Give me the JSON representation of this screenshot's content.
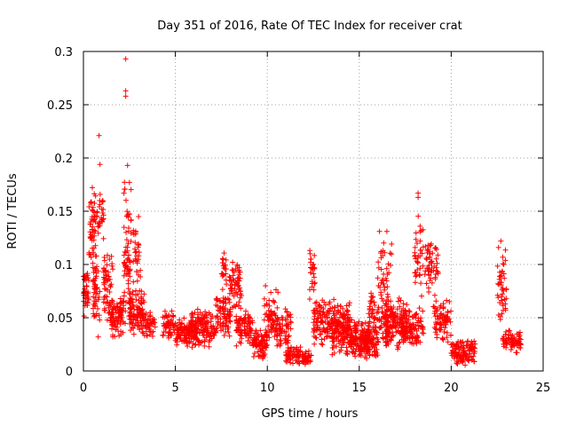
{
  "chart_data": {
    "type": "scatter",
    "title": "Day 351 of 2016, Rate Of TEC Index for receiver crat",
    "xlabel": "GPS time / hours",
    "ylabel": "ROTI / TECUs",
    "xlim": [
      0,
      25
    ],
    "ylim": [
      0,
      0.3
    ],
    "xticks": [
      "0",
      "5",
      "10",
      "15",
      "20",
      "25"
    ],
    "yticks": [
      "0",
      "0.05",
      "0.1",
      "0.15",
      "0.2",
      "0.25",
      "0.3"
    ],
    "grid": true,
    "marker": "+",
    "color": "#ff0000",
    "clusters": [
      {
        "x": [
          0.0,
          0.3
        ],
        "y": [
          0.05,
          0.1
        ],
        "n": 40
      },
      {
        "x": [
          0.3,
          0.7
        ],
        "y": [
          0.09,
          0.18
        ],
        "n": 50
      },
      {
        "x": [
          0.5,
          0.9
        ],
        "y": [
          0.03,
          0.12
        ],
        "n": 50
      },
      {
        "x": [
          0.7,
          1.1
        ],
        "y": [
          0.12,
          0.17
        ],
        "n": 30
      },
      {
        "x": [
          1.1,
          1.6
        ],
        "y": [
          0.04,
          0.12
        ],
        "n": 60
      },
      {
        "x": [
          1.4,
          2.2
        ],
        "y": [
          0.03,
          0.07
        ],
        "n": 80
      },
      {
        "x": [
          2.2,
          2.6
        ],
        "y": [
          0.03,
          0.19
        ],
        "n": 70
      },
      {
        "x": [
          2.5,
          3.3
        ],
        "y": [
          0.03,
          0.08
        ],
        "n": 100
      },
      {
        "x": [
          2.7,
          3.1
        ],
        "y": [
          0.08,
          0.14
        ],
        "n": 30
      },
      {
        "x": [
          3.3,
          3.9
        ],
        "y": [
          0.03,
          0.06
        ],
        "n": 40
      },
      {
        "x": [
          4.3,
          5.0
        ],
        "y": [
          0.03,
          0.06
        ],
        "n": 60
      },
      {
        "x": [
          5.0,
          6.2
        ],
        "y": [
          0.02,
          0.05
        ],
        "n": 120
      },
      {
        "x": [
          5.8,
          7.2
        ],
        "y": [
          0.02,
          0.06
        ],
        "n": 130
      },
      {
        "x": [
          7.2,
          8.0
        ],
        "y": [
          0.03,
          0.08
        ],
        "n": 80
      },
      {
        "x": [
          7.5,
          7.8
        ],
        "y": [
          0.08,
          0.12
        ],
        "n": 20
      },
      {
        "x": [
          7.9,
          8.6
        ],
        "y": [
          0.05,
          0.11
        ],
        "n": 60
      },
      {
        "x": [
          8.3,
          9.2
        ],
        "y": [
          0.02,
          0.06
        ],
        "n": 80
      },
      {
        "x": [
          9.2,
          10.0
        ],
        "y": [
          0.01,
          0.04
        ],
        "n": 80
      },
      {
        "x": [
          9.8,
          10.6
        ],
        "y": [
          0.02,
          0.08
        ],
        "n": 70
      },
      {
        "x": [
          10.5,
          11.3
        ],
        "y": [
          0.02,
          0.06
        ],
        "n": 60
      },
      {
        "x": [
          11.0,
          11.8
        ],
        "y": [
          0.005,
          0.025
        ],
        "n": 60
      },
      {
        "x": [
          11.9,
          12.4
        ],
        "y": [
          0.005,
          0.02
        ],
        "n": 40
      },
      {
        "x": [
          12.3,
          12.6
        ],
        "y": [
          0.06,
          0.13
        ],
        "n": 25
      },
      {
        "x": [
          12.5,
          14.5
        ],
        "y": [
          0.02,
          0.07
        ],
        "n": 200
      },
      {
        "x": [
          13.5,
          14.5
        ],
        "y": [
          0.01,
          0.06
        ],
        "n": 80
      },
      {
        "x": [
          14.5,
          15.5
        ],
        "y": [
          0.01,
          0.05
        ],
        "n": 120
      },
      {
        "x": [
          15.0,
          16.0
        ],
        "y": [
          0.01,
          0.04
        ],
        "n": 80
      },
      {
        "x": [
          15.5,
          16.6
        ],
        "y": [
          0.02,
          0.08
        ],
        "n": 100
      },
      {
        "x": [
          16.4,
          17.6
        ],
        "y": [
          0.02,
          0.07
        ],
        "n": 140
      },
      {
        "x": [
          16.0,
          16.8
        ],
        "y": [
          0.06,
          0.13
        ],
        "n": 35
      },
      {
        "x": [
          17.3,
          18.5
        ],
        "y": [
          0.02,
          0.06
        ],
        "n": 100
      },
      {
        "x": [
          18.0,
          18.7
        ],
        "y": [
          0.06,
          0.15
        ],
        "n": 45
      },
      {
        "x": [
          18.7,
          19.3
        ],
        "y": [
          0.07,
          0.13
        ],
        "n": 45
      },
      {
        "x": [
          19.0,
          20.0
        ],
        "y": [
          0.02,
          0.07
        ],
        "n": 80
      },
      {
        "x": [
          20.0,
          21.3
        ],
        "y": [
          0.005,
          0.03
        ],
        "n": 120
      },
      {
        "x": [
          22.5,
          23.0
        ],
        "y": [
          0.04,
          0.12
        ],
        "n": 45
      },
      {
        "x": [
          22.8,
          23.8
        ],
        "y": [
          0.015,
          0.04
        ],
        "n": 70
      }
    ],
    "outliers": [
      {
        "x": 0.85,
        "y": 0.221
      },
      {
        "x": 0.9,
        "y": 0.194
      },
      {
        "x": 2.3,
        "y": 0.293
      },
      {
        "x": 2.3,
        "y": 0.263
      },
      {
        "x": 2.3,
        "y": 0.258
      },
      {
        "x": 2.4,
        "y": 0.193
      },
      {
        "x": 2.5,
        "y": 0.177
      },
      {
        "x": 18.2,
        "y": 0.167
      },
      {
        "x": 18.2,
        "y": 0.163
      },
      {
        "x": 16.1,
        "y": 0.131
      },
      {
        "x": 16.5,
        "y": 0.131
      },
      {
        "x": 22.7,
        "y": 0.122
      },
      {
        "x": 9.9,
        "y": 0.08
      },
      {
        "x": 3.0,
        "y": 0.145
      }
    ]
  }
}
